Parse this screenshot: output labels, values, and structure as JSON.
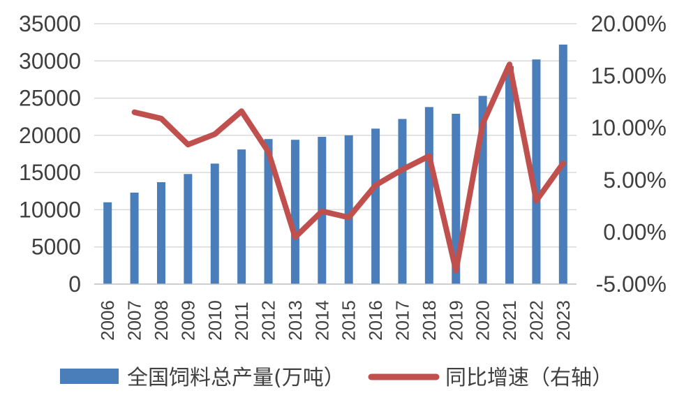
{
  "chart_data": {
    "type": "bar",
    "categories": [
      "2006",
      "2007",
      "2008",
      "2009",
      "2010",
      "2011",
      "2012",
      "2013",
      "2014",
      "2015",
      "2016",
      "2017",
      "2018",
      "2019",
      "2020",
      "2021",
      "2022",
      "2023"
    ],
    "series": [
      {
        "name": "全国饲料总产量(万吨）",
        "type": "bar",
        "axis": "left",
        "color": "#4a7ebb",
        "values": [
          11000,
          12300,
          13700,
          14800,
          16200,
          18100,
          19500,
          19400,
          19800,
          20000,
          20900,
          22200,
          23800,
          22900,
          25300,
          29300,
          30200,
          32200
        ]
      },
      {
        "name": "同比增速（右轴）",
        "type": "line",
        "axis": "right",
        "color": "#c0504d",
        "values": [
          null,
          11.5,
          10.9,
          8.4,
          9.4,
          11.6,
          7.7,
          -0.5,
          2.0,
          1.4,
          4.5,
          6.0,
          7.3,
          -3.7,
          10.4,
          16.1,
          3.0,
          6.6
        ]
      }
    ],
    "y_left": {
      "ylim": [
        0,
        35000
      ],
      "ticks": [
        "0",
        "5000",
        "10000",
        "15000",
        "20000",
        "25000",
        "30000",
        "35000"
      ]
    },
    "y_right": {
      "ylim": [
        -5,
        20
      ],
      "ticks": [
        "-5.00%",
        "0.00%",
        "5.00%",
        "10.00%",
        "15.00%",
        "20.00%"
      ]
    },
    "grid": true,
    "legend_position": "bottom",
    "title": "",
    "xlabel": "",
    "ylabel": ""
  }
}
